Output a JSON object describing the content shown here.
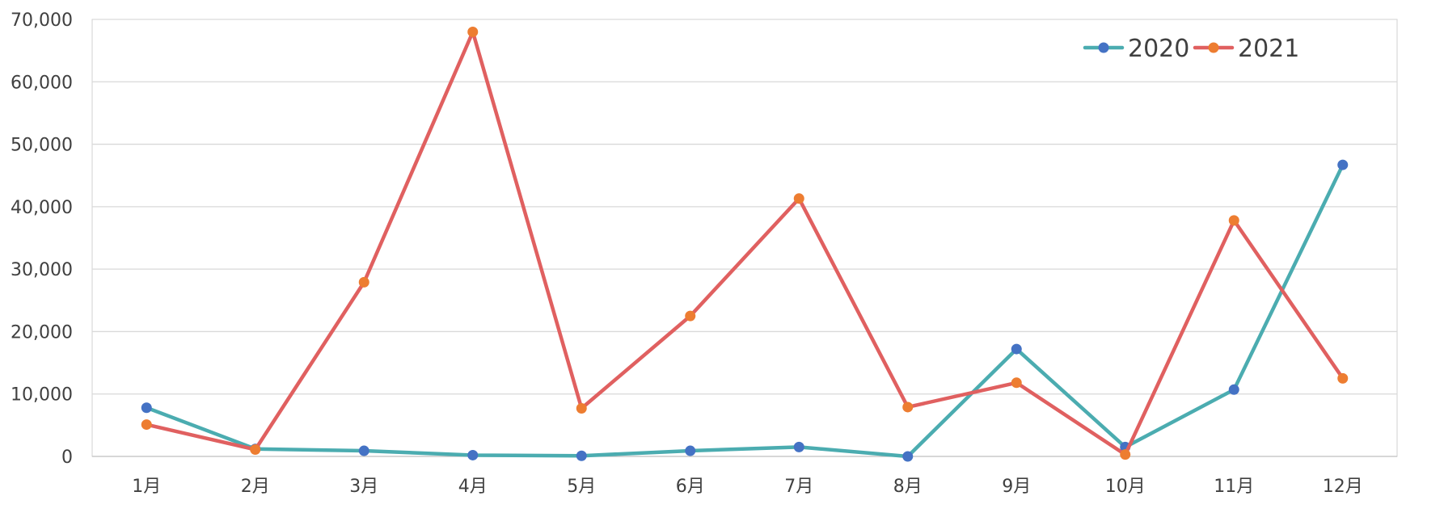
{
  "chart_data": {
    "type": "line",
    "categories": [
      "1月",
      "2月",
      "3月",
      "4月",
      "5月",
      "6月",
      "7月",
      "8月",
      "9月",
      "10月",
      "11月",
      "12月"
    ],
    "series": [
      {
        "name": "2020",
        "values": [
          7800,
          1200,
          900,
          200,
          100,
          900,
          1500,
          0,
          17200,
          1500,
          10700,
          46700
        ],
        "line_color": "#4BACB0",
        "marker_color": "#4472C4"
      },
      {
        "name": "2021",
        "values": [
          5100,
          1100,
          27900,
          68000,
          7700,
          22500,
          41300,
          7900,
          11800,
          300,
          37800,
          12500
        ],
        "line_color": "#E06060",
        "marker_color": "#ED7D31"
      }
    ],
    "ylim": [
      0,
      70000
    ],
    "yticks": [
      0,
      10000,
      20000,
      30000,
      40000,
      50000,
      60000,
      70000
    ],
    "ytick_labels": [
      "0",
      "10,000",
      "20,000",
      "30,000",
      "40,000",
      "50,000",
      "60,000",
      "70,000"
    ],
    "grid": true,
    "legend_position": "top-right",
    "title": "",
    "xlabel": "",
    "ylabel": ""
  }
}
